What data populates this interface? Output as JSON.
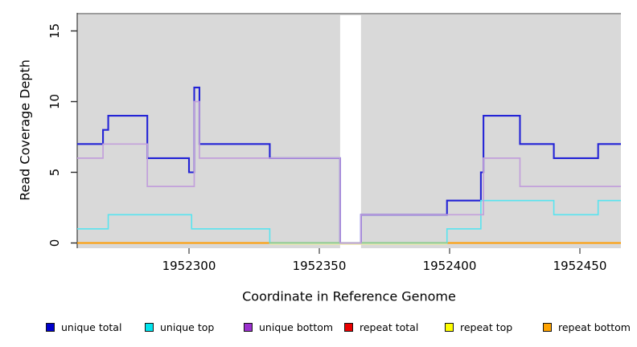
{
  "axes": {
    "y_label": "Read Coverage Depth",
    "x_label": "Coordinate in Reference Genome",
    "y_ticks": [
      0,
      5,
      10,
      15
    ],
    "x_ticks": [
      1952300,
      1952350,
      1952400,
      1952450
    ]
  },
  "legend": [
    {
      "id": "unique-total",
      "label": "unique total",
      "color": "#0000CC"
    },
    {
      "id": "unique-top",
      "label": "unique top",
      "color": "#00E5EE"
    },
    {
      "id": "unique-bottom",
      "label": "unique bottom",
      "color": "#9B30CE"
    },
    {
      "id": "repeat-total",
      "label": "repeat total",
      "color": "#EA0000"
    },
    {
      "id": "repeat-top",
      "label": "repeat top",
      "color": "#FFFF00"
    },
    {
      "id": "repeat-bottom",
      "label": "repeat bottom",
      "color": "#FFA300"
    }
  ],
  "chart_data": {
    "type": "line",
    "subtype": "step-coverage",
    "title": "",
    "xlabel": "Coordinate in Reference Genome",
    "ylabel": "Read Coverage Depth",
    "xlim": [
      1952257,
      1952466
    ],
    "ylim": [
      0,
      16.3
    ],
    "x_ticks": [
      1952300,
      1952350,
      1952400,
      1952450
    ],
    "y_ticks": [
      0,
      5,
      10,
      15
    ],
    "grid": false,
    "legend_position": "bottom",
    "no_data_region": [
      1952358,
      1952366
    ],
    "series": [
      {
        "name": "unique total",
        "color": "#2323D6",
        "width": 2.1,
        "steps": [
          [
            1952257,
            7
          ],
          [
            1952267,
            8
          ],
          [
            1952269,
            9
          ],
          [
            1952284,
            6
          ],
          [
            1952300,
            5
          ],
          [
            1952302,
            11
          ],
          [
            1952304,
            7
          ],
          [
            1952331,
            6
          ],
          [
            1952358,
            0
          ],
          [
            1952366,
            2
          ],
          [
            1952399,
            3
          ],
          [
            1952412,
            5
          ],
          [
            1952413,
            9
          ],
          [
            1952427,
            7
          ],
          [
            1952440,
            6
          ],
          [
            1952457,
            7
          ]
        ],
        "x_end": 1952466
      },
      {
        "name": "unique top",
        "color": "#58E4EF",
        "width": 1.6,
        "steps": [
          [
            1952257,
            1
          ],
          [
            1952269,
            2
          ],
          [
            1952301,
            1
          ],
          [
            1952331,
            0
          ],
          [
            1952399,
            1
          ],
          [
            1952412,
            3
          ],
          [
            1952440,
            2
          ],
          [
            1952457,
            3
          ]
        ],
        "x_end": 1952466
      },
      {
        "name": "unique bottom",
        "color": "#C2A0DB",
        "width": 1.7,
        "steps": [
          [
            1952257,
            6
          ],
          [
            1952267,
            7
          ],
          [
            1952284,
            4
          ],
          [
            1952302,
            10
          ],
          [
            1952304,
            6
          ],
          [
            1952358,
            0
          ],
          [
            1952366,
            2
          ],
          [
            1952413,
            6
          ],
          [
            1952427,
            4
          ]
        ],
        "x_end": 1952466
      },
      {
        "name": "repeat total",
        "color": "#EA0000",
        "width": 1.5,
        "steps": [
          [
            1952257,
            0
          ]
        ],
        "x_end": 1952466
      },
      {
        "name": "repeat top",
        "color": "#EFE8A8",
        "width": 1.3,
        "steps": [
          [
            1952257,
            0
          ]
        ],
        "x_end": 1952466
      },
      {
        "name": "repeat bottom",
        "color": "#FF9C00",
        "width": 2,
        "steps": [
          [
            1952257,
            0
          ]
        ],
        "x_end": 1952466
      }
    ],
    "render_hints": {
      "panel_bg": "#D9D9D9",
      "panel_top_border": "#9C9C9C",
      "axis_line_color": "#3A3A3A",
      "x_tick_color": "#6E6E6E",
      "gap_fill": "#FFFFFF",
      "baseline_orange_segments": [
        [
          1952257,
          1952331
        ],
        [
          1952399,
          1952466
        ]
      ],
      "baseline_green_segment": [
        1952331,
        1952399
      ],
      "baseline_green_color": "#90CC90",
      "baseline_pale_yellow_color": "#EFE8A8"
    }
  },
  "legend_layout": {
    "lefts": [
      57,
      180,
      303,
      428,
      553,
      675
    ]
  }
}
